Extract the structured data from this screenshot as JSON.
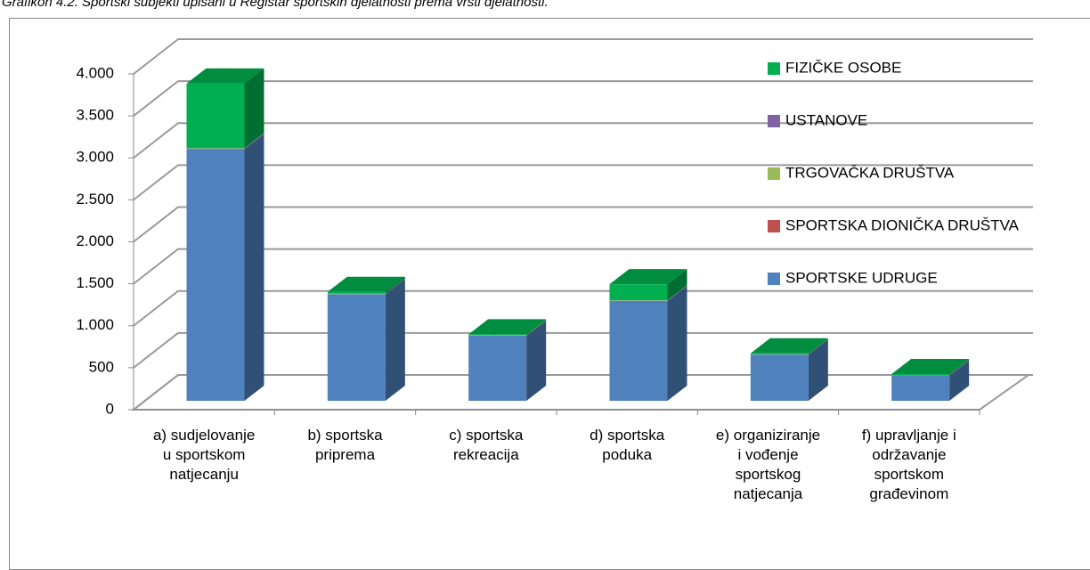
{
  "chart_data": {
    "type": "bar3d_stacked",
    "title": "Grafikon 4.2. Sportski subjekti upisani u Registar sportskih djelatnosti prema vrsti djelatnosti.",
    "categories": [
      "a) sudjelovanje u sportskom natjecanju",
      "b) sportska priprema",
      "c) sportska rekreacija",
      "d) sportska poduka",
      "e) organiziranje i vođenje sportskog natjecanja",
      "f) upravljanje i održavanje sportskom građevinom"
    ],
    "series": [
      {
        "name": "SPORTSKE UDRUGE",
        "color": "#4f81bd",
        "values": [
          3000,
          1270,
          775,
          1190,
          550,
          300
        ]
      },
      {
        "name": "SPORTSKA DIONIČKA DRUŠTVA",
        "color": "#c0504d",
        "values": [
          2,
          0,
          0,
          0,
          0,
          0
        ]
      },
      {
        "name": "TRGOVAČKA DRUŠTVA",
        "color": "#9bbb59",
        "values": [
          5,
          5,
          5,
          5,
          3,
          3
        ]
      },
      {
        "name": "USTANOVE",
        "color": "#8064a2",
        "values": [
          3,
          2,
          2,
          3,
          2,
          5
        ]
      },
      {
        "name": "FIZIČKE OSOBE",
        "color": "#00b050",
        "values": [
          770,
          20,
          10,
          190,
          10,
          10
        ]
      }
    ],
    "ylim": [
      0,
      4000
    ],
    "yticks": [
      0,
      500,
      {
        "value": 1000,
        "label": "1.000"
      },
      {
        "value": 1500,
        "label": "1.500"
      },
      {
        "value": 2000,
        "label": "2.000"
      },
      {
        "value": 2500,
        "label": "2.500"
      },
      {
        "value": 3000,
        "label": "3.000"
      },
      {
        "value": 3500,
        "label": "3.500"
      },
      {
        "value": 4000,
        "label": "4.000"
      }
    ],
    "grid": true
  }
}
